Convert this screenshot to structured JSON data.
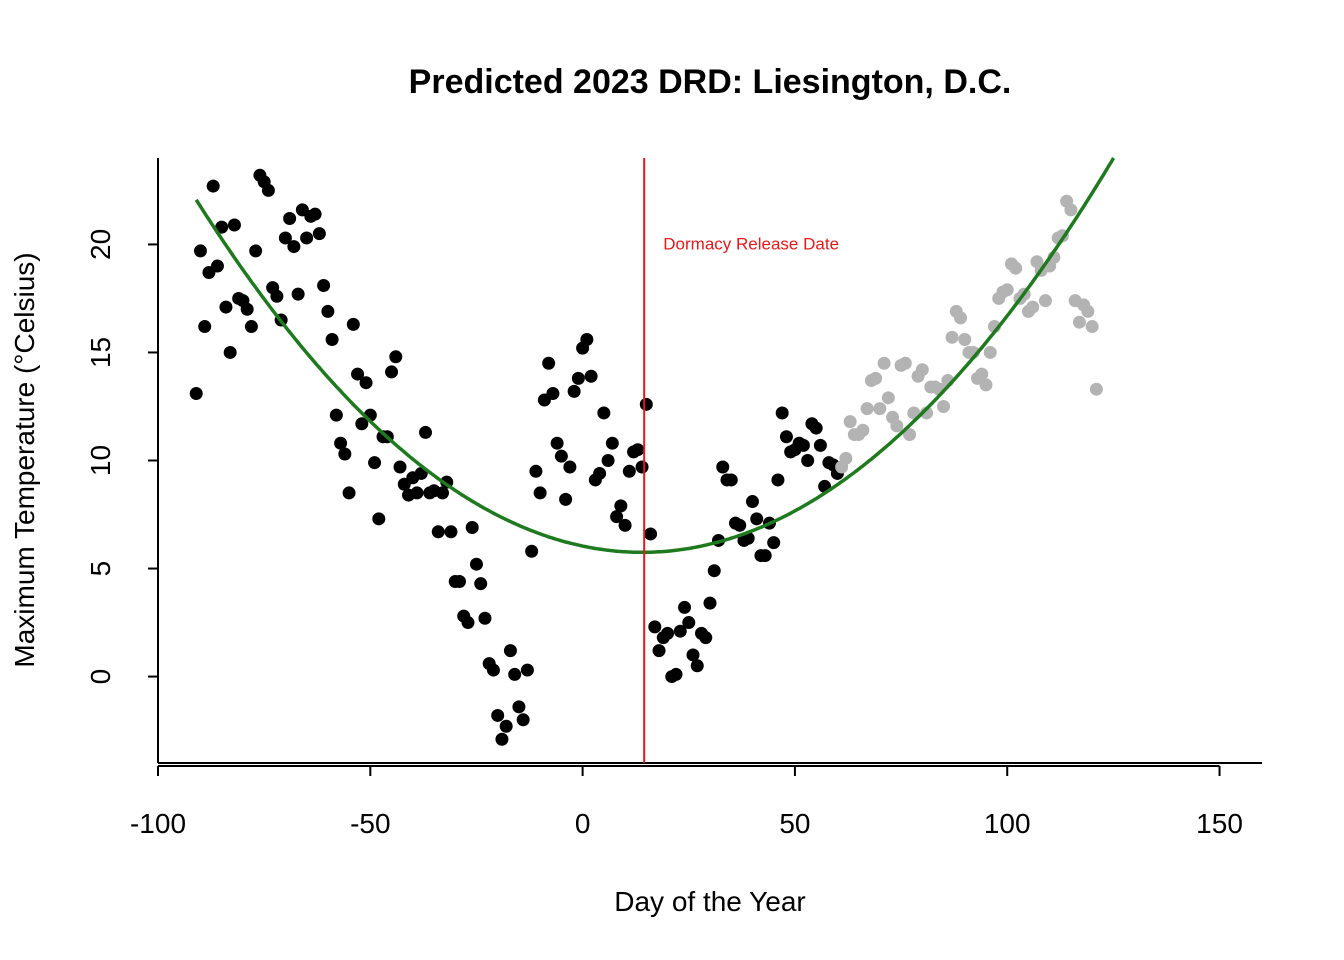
{
  "chart_data": {
    "type": "scatter",
    "title": "Predicted 2023 DRD: Liesington, D.C.",
    "xlabel": "Day of the Year",
    "ylabel": "Maximum Temperature (°Celsius)",
    "xlim": [
      -100,
      160
    ],
    "ylim": [
      -4,
      24
    ],
    "xticks": [
      -100,
      -50,
      0,
      50,
      100,
      150
    ],
    "yticks": [
      0,
      5,
      10,
      15,
      20
    ],
    "grid": false,
    "colors": {
      "observed": "#000000",
      "forecast": "#b3b3b3",
      "fit": "#1f7a1f",
      "release": "#e31a1c"
    },
    "annotation": {
      "text": "Dormacy Release Date",
      "x": 19,
      "y": 20
    },
    "release_line_x": 14.5,
    "fit_curve": {
      "vertex_x": 14,
      "vertex_y": 5.75,
      "x_start": -91,
      "a": 0.00148
    },
    "series": [
      {
        "color": "#000000",
        "points": [
          [
            -91,
            13.1
          ],
          [
            -90,
            19.7
          ],
          [
            -89,
            16.2
          ],
          [
            -88,
            18.7
          ],
          [
            -87,
            22.7
          ],
          [
            -86,
            19.0
          ],
          [
            -85,
            20.8
          ],
          [
            -84,
            17.1
          ],
          [
            -83,
            15.0
          ],
          [
            -82,
            20.9
          ],
          [
            -81,
            17.5
          ],
          [
            -80,
            17.4
          ],
          [
            -79,
            17.0
          ],
          [
            -78,
            16.2
          ],
          [
            -77,
            19.7
          ],
          [
            -76,
            23.2
          ],
          [
            -75,
            22.9
          ],
          [
            -74,
            22.5
          ],
          [
            -73,
            18.0
          ],
          [
            -72,
            17.6
          ],
          [
            -71,
            16.5
          ],
          [
            -70,
            20.3
          ],
          [
            -69,
            21.2
          ],
          [
            -68,
            19.9
          ],
          [
            -67,
            17.7
          ],
          [
            -66,
            21.6
          ],
          [
            -65,
            20.3
          ],
          [
            -64,
            21.3
          ],
          [
            -63,
            21.4
          ],
          [
            -62,
            20.5
          ],
          [
            -61,
            18.1
          ],
          [
            -60,
            16.9
          ],
          [
            -59,
            15.6
          ],
          [
            -58,
            12.1
          ],
          [
            -57,
            10.8
          ],
          [
            -56,
            10.3
          ],
          [
            -55,
            8.5
          ],
          [
            -54,
            16.3
          ],
          [
            -53,
            14.0
          ],
          [
            -52,
            11.7
          ],
          [
            -51,
            13.6
          ],
          [
            -50,
            12.1
          ],
          [
            -49,
            9.9
          ],
          [
            -48,
            7.3
          ],
          [
            -47,
            11.1
          ],
          [
            -46,
            11.1
          ],
          [
            -45,
            14.1
          ],
          [
            -44,
            14.8
          ],
          [
            -43,
            9.7
          ],
          [
            -42,
            8.9
          ],
          [
            -41,
            8.4
          ],
          [
            -40,
            9.2
          ],
          [
            -39,
            8.5
          ],
          [
            -38,
            9.4
          ],
          [
            -37,
            11.3
          ],
          [
            -36,
            8.5
          ],
          [
            -35,
            8.6
          ],
          [
            -34,
            6.7
          ],
          [
            -33,
            8.5
          ],
          [
            -32,
            9.0
          ],
          [
            -31,
            6.7
          ],
          [
            -30,
            4.4
          ],
          [
            -29,
            4.4
          ],
          [
            -28,
            2.8
          ],
          [
            -27,
            2.5
          ],
          [
            -26,
            6.9
          ],
          [
            -25,
            5.2
          ],
          [
            -24,
            4.3
          ],
          [
            -23,
            2.7
          ],
          [
            -22,
            0.6
          ],
          [
            -21,
            0.3
          ],
          [
            -20,
            -1.8
          ],
          [
            -19,
            -2.9
          ],
          [
            -18,
            -2.3
          ],
          [
            -17,
            1.2
          ],
          [
            -16,
            0.1
          ],
          [
            -15,
            -1.4
          ],
          [
            -14,
            -2.0
          ],
          [
            -13,
            0.3
          ],
          [
            -12,
            5.8
          ],
          [
            -11,
            9.5
          ],
          [
            -10,
            8.5
          ],
          [
            -9,
            12.8
          ],
          [
            -8,
            14.5
          ],
          [
            -7,
            13.1
          ],
          [
            -6,
            10.8
          ],
          [
            -5,
            10.2
          ],
          [
            -4,
            8.2
          ],
          [
            -3,
            9.7
          ],
          [
            -2,
            13.2
          ],
          [
            -1,
            13.8
          ],
          [
            0,
            15.2
          ],
          [
            1,
            15.6
          ],
          [
            2,
            13.9
          ],
          [
            3,
            9.1
          ],
          [
            4,
            9.4
          ],
          [
            5,
            12.2
          ],
          [
            6,
            10.0
          ],
          [
            7,
            10.8
          ],
          [
            8,
            7.4
          ],
          [
            9,
            7.9
          ],
          [
            10,
            7.0
          ],
          [
            11,
            9.5
          ],
          [
            12,
            10.4
          ],
          [
            13,
            10.5
          ],
          [
            14,
            9.7
          ],
          [
            15,
            12.6
          ],
          [
            16,
            6.6
          ],
          [
            17,
            2.3
          ],
          [
            18,
            1.2
          ],
          [
            19,
            1.8
          ],
          [
            20,
            2.0
          ],
          [
            21,
            0.0
          ],
          [
            22,
            0.1
          ],
          [
            23,
            2.1
          ],
          [
            24,
            3.2
          ],
          [
            25,
            2.5
          ],
          [
            26,
            1.0
          ],
          [
            27,
            0.5
          ],
          [
            28,
            2.0
          ],
          [
            29,
            1.8
          ],
          [
            30,
            3.4
          ],
          [
            31,
            4.9
          ],
          [
            32,
            6.3
          ],
          [
            33,
            9.7
          ],
          [
            34,
            9.1
          ],
          [
            35,
            9.1
          ],
          [
            36,
            7.1
          ],
          [
            37,
            7.0
          ],
          [
            38,
            6.3
          ],
          [
            39,
            6.4
          ],
          [
            40,
            8.1
          ],
          [
            41,
            7.3
          ],
          [
            42,
            5.6
          ],
          [
            43,
            5.6
          ],
          [
            44,
            7.1
          ],
          [
            45,
            6.2
          ],
          [
            46,
            9.1
          ],
          [
            47,
            12.2
          ],
          [
            48,
            11.1
          ],
          [
            49,
            10.4
          ],
          [
            50,
            10.5
          ],
          [
            51,
            10.8
          ],
          [
            52,
            10.7
          ],
          [
            53,
            10.0
          ],
          [
            54,
            11.7
          ],
          [
            55,
            11.5
          ],
          [
            56,
            10.7
          ],
          [
            57,
            8.8
          ],
          [
            58,
            9.9
          ],
          [
            59,
            9.8
          ],
          [
            60,
            9.4
          ]
        ]
      },
      {
        "color": "#b3b3b3",
        "points": [
          [
            61,
            9.7
          ],
          [
            62,
            10.1
          ],
          [
            63,
            11.8
          ],
          [
            64,
            11.2
          ],
          [
            65,
            11.2
          ],
          [
            66,
            11.4
          ],
          [
            67,
            12.4
          ],
          [
            68,
            13.7
          ],
          [
            69,
            13.8
          ],
          [
            70,
            12.4
          ],
          [
            71,
            14.5
          ],
          [
            72,
            12.9
          ],
          [
            73,
            12.0
          ],
          [
            74,
            11.6
          ],
          [
            75,
            14.4
          ],
          [
            76,
            14.5
          ],
          [
            77,
            11.2
          ],
          [
            78,
            12.2
          ],
          [
            79,
            13.9
          ],
          [
            80,
            14.2
          ],
          [
            81,
            12.2
          ],
          [
            82,
            13.4
          ],
          [
            83,
            13.4
          ],
          [
            84,
            13.3
          ],
          [
            85,
            12.5
          ],
          [
            86,
            13.7
          ],
          [
            87,
            15.7
          ],
          [
            88,
            16.9
          ],
          [
            89,
            16.6
          ],
          [
            90,
            15.6
          ],
          [
            91,
            15.0
          ],
          [
            92,
            15.0
          ],
          [
            93,
            13.8
          ],
          [
            94,
            14.0
          ],
          [
            95,
            13.5
          ],
          [
            96,
            15.0
          ],
          [
            97,
            16.2
          ],
          [
            98,
            17.5
          ],
          [
            99,
            17.8
          ],
          [
            100,
            17.9
          ],
          [
            101,
            19.1
          ],
          [
            102,
            18.9
          ],
          [
            103,
            17.5
          ],
          [
            104,
            17.7
          ],
          [
            105,
            16.9
          ],
          [
            106,
            17.1
          ],
          [
            107,
            19.2
          ],
          [
            108,
            18.8
          ],
          [
            109,
            17.4
          ],
          [
            110,
            19.0
          ],
          [
            111,
            19.4
          ],
          [
            112,
            20.3
          ],
          [
            113,
            20.4
          ],
          [
            114,
            22.0
          ],
          [
            115,
            21.6
          ],
          [
            116,
            17.4
          ],
          [
            117,
            16.4
          ],
          [
            118,
            17.2
          ],
          [
            119,
            16.9
          ],
          [
            120,
            16.2
          ],
          [
            121,
            13.3
          ]
        ]
      }
    ]
  }
}
